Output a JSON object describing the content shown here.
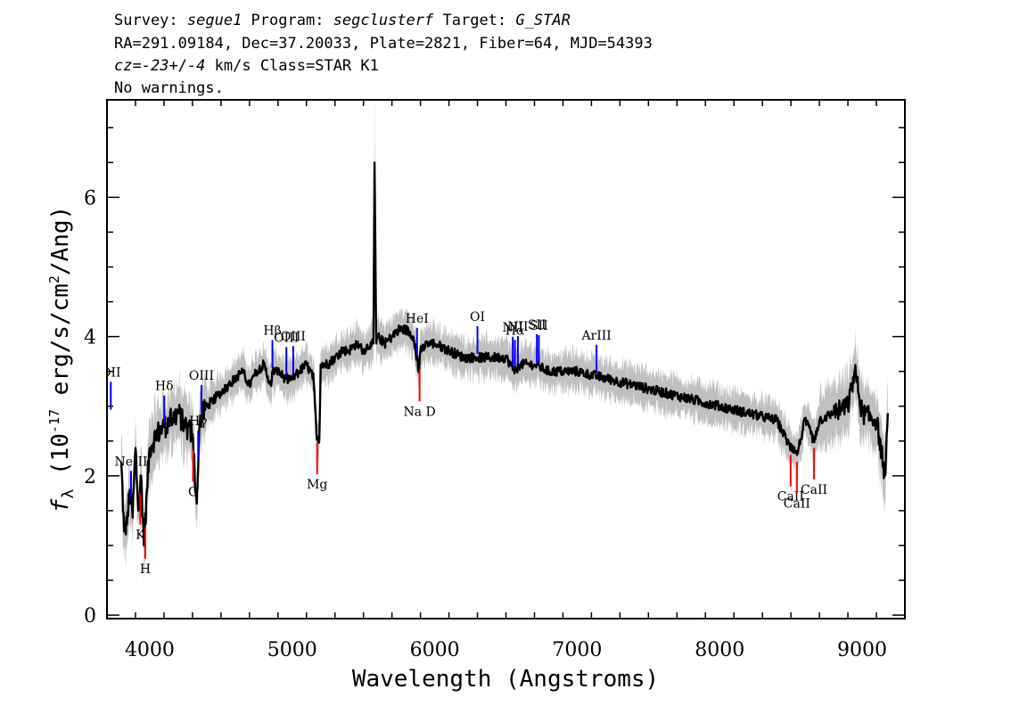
{
  "header": {
    "line1": [
      {
        "text": "Survey: ",
        "italic": false
      },
      {
        "text": "segue1",
        "italic": true
      },
      {
        "text": " Program: ",
        "italic": false
      },
      {
        "text": "segclusterf",
        "italic": true
      },
      {
        "text": " Target: ",
        "italic": false
      },
      {
        "text": "G_STAR",
        "italic": true
      }
    ],
    "line2": "RA=291.09184, Dec=37.20033, Plate=2821, Fiber=64, MJD=54393",
    "line3": [
      {
        "text": "cz=",
        "italic": true
      },
      {
        "text": "-23",
        "italic": true
      },
      {
        "text": "+/",
        "italic": false
      },
      {
        "text": "-4",
        "italic": true
      },
      {
        "text": " km/s Class=STAR K1",
        "italic": false
      }
    ],
    "line4": "No warnings."
  },
  "chart_data": {
    "type": "line",
    "xlabel": "Wavelength (Angstroms)",
    "ylabel": "f_λ (10^-17 erg/s/cm^2/Ang)",
    "xlim": [
      3700,
      9300
    ],
    "ylim": [
      -0.05,
      7.4
    ],
    "x_ticks": [
      4000,
      5000,
      6000,
      7000,
      8000,
      9000
    ],
    "y_ticks": [
      0,
      2,
      4,
      6
    ],
    "colors": {
      "flux": "#000000",
      "error": "#c0c0c0",
      "emission": "#0000ff",
      "absorption": "#ff0000"
    },
    "series": [
      {
        "x": [
          3800,
          3820,
          3840,
          3860,
          3880,
          3900,
          3920,
          3940,
          3960,
          3980,
          4000,
          4050,
          4100,
          4150,
          4200,
          4250,
          4300,
          4330,
          4350,
          4400,
          4450,
          4500,
          4550,
          4600,
          4650,
          4700,
          4750,
          4800,
          4850,
          4860,
          4900,
          4950,
          5000,
          5050,
          5100,
          5150,
          5170,
          5190,
          5200,
          5250,
          5300,
          5350,
          5400,
          5450,
          5500,
          5550,
          5570,
          5578,
          5590,
          5600,
          5650,
          5700,
          5750,
          5800,
          5850,
          5890,
          5900,
          5950,
          6000,
          6100,
          6200,
          6300,
          6400,
          6500,
          6563,
          6600,
          6700,
          6800,
          6900,
          7000,
          7200,
          7400,
          7600,
          7800,
          8000,
          8200,
          8400,
          8498,
          8542,
          8600,
          8662,
          8700,
          8800,
          8900,
          8950,
          9000,
          9100,
          9160,
          9180
        ],
        "y": [
          2.2,
          1.2,
          1.3,
          1.8,
          1.4,
          2.4,
          1.5,
          2.0,
          1.0,
          1.8,
          2.4,
          2.6,
          2.7,
          2.8,
          2.9,
          2.7,
          2.6,
          1.6,
          2.8,
          3.0,
          3.1,
          3.2,
          3.3,
          3.4,
          3.5,
          3.3,
          3.5,
          3.6,
          3.3,
          3.5,
          3.5,
          3.4,
          3.4,
          3.5,
          3.6,
          3.4,
          2.6,
          2.5,
          3.6,
          3.6,
          3.7,
          3.8,
          3.8,
          3.9,
          3.8,
          3.9,
          3.9,
          6.5,
          3.9,
          4.0,
          3.9,
          4.0,
          4.1,
          4.1,
          4.0,
          3.5,
          3.8,
          3.9,
          3.9,
          3.8,
          3.7,
          3.7,
          3.7,
          3.7,
          3.5,
          3.6,
          3.6,
          3.5,
          3.5,
          3.5,
          3.4,
          3.3,
          3.2,
          3.1,
          3.0,
          2.9,
          2.8,
          2.4,
          2.3,
          2.8,
          2.5,
          2.8,
          2.9,
          3.0,
          3.5,
          2.9,
          2.8,
          2.0,
          2.9
        ],
        "error": 0.25
      }
    ],
    "emission_lines": [
      {
        "label": "OII",
        "x": 3727
      },
      {
        "label": "NeIII",
        "x": 3869
      },
      {
        "label": "Hδ",
        "x": 4102
      },
      {
        "label": "Hγ",
        "x": 4340
      },
      {
        "label": "OIII",
        "x": 4363
      },
      {
        "label": "Hβ",
        "x": 4861
      },
      {
        "label": "OIII",
        "x": 4959
      },
      {
        "label": "OIII",
        "x": 5007
      },
      {
        "label": "HeI",
        "x": 5876
      },
      {
        "label": "OI",
        "x": 6300
      },
      {
        "label": "NII",
        "x": 6548
      },
      {
        "label": "Hα",
        "x": 6563
      },
      {
        "label": "NII",
        "x": 6584
      },
      {
        "label": "SII",
        "x": 6717
      },
      {
        "label": "SII",
        "x": 6731
      },
      {
        "label": "ArIII",
        "x": 7136
      }
    ],
    "absorption_lines": [
      {
        "label": "K",
        "x": 3934
      },
      {
        "label": "H",
        "x": 3969
      },
      {
        "label": "G",
        "x": 4304
      },
      {
        "label": "Mg",
        "x": 5175
      },
      {
        "label": "Na D",
        "x": 5894
      },
      {
        "label": "CaII",
        "x": 8498
      },
      {
        "label": "CaII",
        "x": 8542
      },
      {
        "label": "CaII",
        "x": 8662
      }
    ]
  }
}
